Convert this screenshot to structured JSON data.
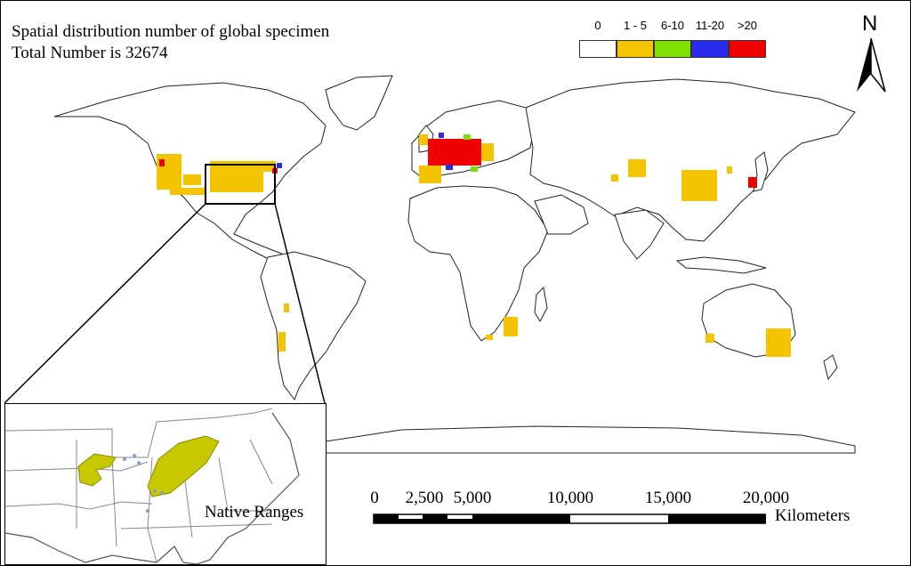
{
  "title": {
    "line1": "Spatial distribution number of global specimen",
    "line2": "Total Number is 32674"
  },
  "legend": {
    "items": [
      {
        "label": "0",
        "color": "#ffffff"
      },
      {
        "label": "1 - 5",
        "color": "#f5c400"
      },
      {
        "label": "6-10",
        "color": "#7fe000"
      },
      {
        "label": "11-20",
        "color": "#2b2bf0"
      },
      {
        "label": ">20",
        "color": "#f00000"
      }
    ]
  },
  "north_arrow": {
    "label": "N"
  },
  "inset": {
    "label": "Native Ranges",
    "range_color": "#c8c800"
  },
  "scale_bar": {
    "ticks": [
      "0",
      "2,500",
      "5,000",
      "10,000",
      "15,000",
      "20,000"
    ],
    "unit": "Kilometers"
  }
}
